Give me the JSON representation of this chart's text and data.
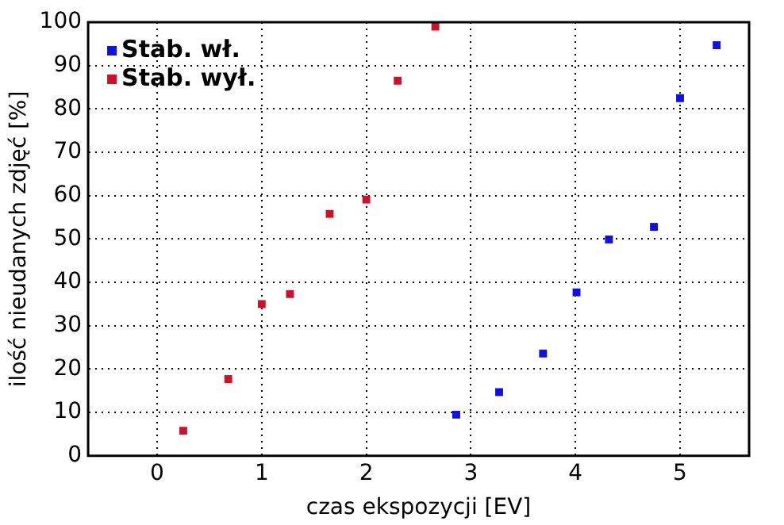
{
  "chart_data": {
    "type": "scatter",
    "xlabel": "czas ekspozycji [EV]",
    "ylabel": "ilość nieudanych zdjęć [%]",
    "xlim": [
      -0.66,
      5.66
    ],
    "xticks": [
      0,
      1,
      2,
      3,
      4,
      5
    ],
    "ylim": [
      0,
      100
    ],
    "yticks": [
      0,
      10,
      20,
      30,
      40,
      50,
      60,
      70,
      80,
      90,
      100
    ],
    "grid": true,
    "legend": "top left",
    "marker": "square",
    "series": [
      {
        "name": "Stab. wł.",
        "color": "#1010e0",
        "x": [
          2.86,
          3.27,
          3.69,
          4.01,
          4.32,
          4.75,
          5.0,
          5.35
        ],
        "values": [
          9.5,
          14.7,
          23.6,
          37.7,
          49.9,
          52.8,
          82.5,
          94.7
        ]
      },
      {
        "name": "Stab. wył.",
        "color": "#d0102a",
        "x": [
          0.25,
          0.68,
          1.0,
          1.27,
          1.65,
          2.0,
          2.3,
          2.66
        ],
        "values": [
          5.8,
          17.7,
          35,
          37.3,
          55.8,
          59.1,
          86.5,
          99
        ]
      }
    ]
  }
}
